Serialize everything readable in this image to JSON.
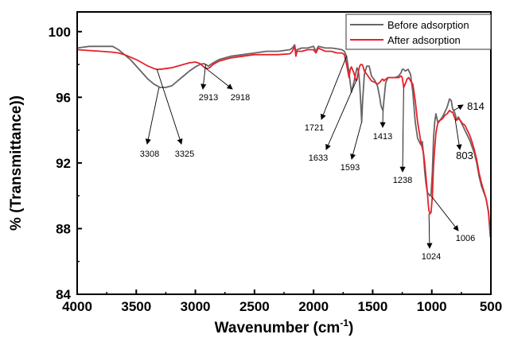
{
  "chart_data": {
    "type": "line",
    "xlabel": "Wavenumber (cm",
    "xlabel_sup": "-1",
    "xlabel_close": ")",
    "ylabel": "% (Transmittance))",
    "xlim": [
      4000,
      500
    ],
    "ylim": [
      84,
      101.2
    ],
    "x_ticks": [
      4000,
      3500,
      3000,
      2500,
      2000,
      1500,
      1000,
      500
    ],
    "y_ticks": [
      84,
      88,
      92,
      96,
      100
    ],
    "legend_position": "top-right",
    "series": [
      {
        "name": "Before adsorption",
        "color": "#666666",
        "x": [
          4000,
          3900,
          3800,
          3700,
          3650,
          3600,
          3550,
          3500,
          3450,
          3400,
          3350,
          3300,
          3250,
          3200,
          3150,
          3100,
          3050,
          3000,
          2960,
          2930,
          2913,
          2890,
          2850,
          2800,
          2700,
          2600,
          2500,
          2400,
          2300,
          2200,
          2180,
          2160,
          2150,
          2140,
          2100,
          2050,
          2000,
          1980,
          1960,
          1900,
          1850,
          1800,
          1760,
          1740,
          1721,
          1700,
          1680,
          1660,
          1633,
          1620,
          1610,
          1600,
          1593,
          1585,
          1570,
          1550,
          1530,
          1510,
          1480,
          1460,
          1440,
          1430,
          1420,
          1413,
          1405,
          1390,
          1370,
          1340,
          1310,
          1280,
          1260,
          1250,
          1238,
          1225,
          1200,
          1180,
          1160,
          1140,
          1120,
          1100,
          1090,
          1080,
          1070,
          1060,
          1050,
          1040,
          1030,
          1024,
          1015,
          1006,
          995,
          985,
          975,
          965,
          950,
          930,
          910,
          890,
          870,
          850,
          835,
          824,
          814,
          803,
          790,
          775,
          760,
          740,
          720,
          700,
          680,
          660,
          640,
          620,
          600,
          580,
          560,
          540,
          520,
          510,
          505,
          500
        ],
        "y": [
          99.0,
          99.1,
          99.1,
          99.1,
          98.9,
          98.6,
          98.3,
          97.9,
          97.5,
          97.1,
          96.8,
          96.6,
          96.6,
          96.7,
          97.0,
          97.3,
          97.6,
          97.85,
          98.0,
          98.05,
          98.0,
          97.9,
          98.1,
          98.3,
          98.5,
          98.6,
          98.7,
          98.8,
          98.8,
          98.9,
          99.0,
          99.2,
          98.7,
          98.9,
          99.0,
          99.0,
          99.1,
          98.8,
          99.1,
          99.0,
          99.0,
          98.95,
          98.9,
          98.8,
          98.5,
          97.5,
          96.3,
          96.9,
          97.8,
          97.6,
          96.8,
          95.5,
          94.5,
          95.8,
          97.4,
          97.9,
          97.9,
          97.3,
          97.0,
          96.7,
          96.0,
          95.5,
          95.3,
          95.2,
          95.8,
          96.9,
          97.2,
          97.2,
          97.2,
          97.3,
          97.5,
          97.7,
          97.7,
          97.6,
          97.7,
          97.4,
          96.3,
          94.5,
          93.5,
          93.2,
          93.1,
          93.3,
          92.5,
          91.5,
          90.8,
          90.3,
          90.1,
          90.1,
          90.0,
          90.1,
          91.5,
          93.5,
          94.5,
          95.0,
          94.5,
          94.6,
          94.8,
          95.1,
          95.4,
          95.9,
          95.8,
          95.3,
          95.2,
          95.0,
          94.6,
          94.8,
          94.6,
          94.3,
          94.0,
          93.7,
          93.4,
          93.0,
          92.6,
          92.0,
          91.2,
          90.6,
          90.2,
          89.8,
          89.0,
          88.0,
          87.5,
          87.8
        ]
      },
      {
        "name": "After adsorption",
        "color": "#e8202a",
        "x": [
          4000,
          3900,
          3800,
          3700,
          3650,
          3600,
          3550,
          3500,
          3450,
          3400,
          3350,
          3325,
          3300,
          3250,
          3200,
          3150,
          3100,
          3050,
          3000,
          2960,
          2930,
          2918,
          2900,
          2880,
          2850,
          2800,
          2700,
          2600,
          2500,
          2400,
          2300,
          2200,
          2180,
          2160,
          2150,
          2140,
          2100,
          2050,
          2000,
          1980,
          1960,
          1900,
          1850,
          1800,
          1760,
          1740,
          1721,
          1710,
          1700,
          1690,
          1680,
          1660,
          1640,
          1633,
          1620,
          1610,
          1600,
          1593,
          1585,
          1570,
          1550,
          1530,
          1510,
          1480,
          1460,
          1440,
          1430,
          1420,
          1413,
          1405,
          1390,
          1370,
          1340,
          1310,
          1280,
          1260,
          1250,
          1238,
          1225,
          1210,
          1195,
          1180,
          1160,
          1140,
          1120,
          1100,
          1090,
          1080,
          1070,
          1060,
          1050,
          1040,
          1030,
          1024,
          1015,
          1006,
          995,
          985,
          975,
          965,
          950,
          930,
          910,
          890,
          870,
          850,
          835,
          824,
          814,
          803,
          790,
          775,
          760,
          740,
          720,
          700,
          680,
          660,
          640,
          620,
          600,
          580,
          560,
          540,
          520,
          510,
          505,
          500
        ],
        "y": [
          98.9,
          98.85,
          98.8,
          98.75,
          98.7,
          98.6,
          98.45,
          98.3,
          98.1,
          97.9,
          97.75,
          97.7,
          97.7,
          97.75,
          97.8,
          97.9,
          98.0,
          98.1,
          98.15,
          98.05,
          97.85,
          97.8,
          97.75,
          97.8,
          98.0,
          98.2,
          98.4,
          98.5,
          98.6,
          98.6,
          98.6,
          98.65,
          98.8,
          99.1,
          98.5,
          98.8,
          98.8,
          98.9,
          98.9,
          98.7,
          99.0,
          98.8,
          98.8,
          98.7,
          98.7,
          98.6,
          98.0,
          97.6,
          97.2,
          97.7,
          97.85,
          97.5,
          97.0,
          97.1,
          97.6,
          97.9,
          98.0,
          98.0,
          97.95,
          97.6,
          97.4,
          97.2,
          97.0,
          96.9,
          96.8,
          96.9,
          97.0,
          97.1,
          97.1,
          97.0,
          97.1,
          97.2,
          97.2,
          97.2,
          97.2,
          97.3,
          97.2,
          96.6,
          96.8,
          97.1,
          97.2,
          97.0,
          96.8,
          95.8,
          94.5,
          93.6,
          93.2,
          92.9,
          92.6,
          92.0,
          91.2,
          90.4,
          89.5,
          89.1,
          88.9,
          89.0,
          90.0,
          91.8,
          92.9,
          93.8,
          94.4,
          94.6,
          94.7,
          94.9,
          95.0,
          95.2,
          95.1,
          95.1,
          94.9,
          94.7,
          94.6,
          94.7,
          94.6,
          94.4,
          94.3,
          94.0,
          93.7,
          93.3,
          92.8,
          92.2,
          91.4,
          90.8,
          90.3,
          89.8,
          89.0,
          88.2,
          87.7,
          87.8
        ]
      }
    ],
    "annotations": [
      {
        "label": "3308",
        "x": 3308,
        "y": 96.6
      },
      {
        "label": "3325",
        "x": 3325,
        "y": 97.7
      },
      {
        "label": "2913",
        "x": 2913,
        "y": 98.0
      },
      {
        "label": "2918",
        "x": 2918,
        "y": 97.8
      },
      {
        "label": "1721",
        "x": 1721,
        "y": 98.5
      },
      {
        "label": "1633",
        "x": 1633,
        "y": 97.1
      },
      {
        "label": "1593",
        "x": 1593,
        "y": 94.5
      },
      {
        "label": "1413",
        "x": 1413,
        "y": 95.2
      },
      {
        "label": "1238",
        "x": 1238,
        "y": 96.6
      },
      {
        "label": "1024",
        "x": 1024,
        "y": 88.9
      },
      {
        "label": "1006",
        "x": 1006,
        "y": 90.0
      },
      {
        "label": "814",
        "x": 814,
        "y": 95.2
      },
      {
        "label": "803",
        "x": 803,
        "y": 94.7
      }
    ]
  }
}
